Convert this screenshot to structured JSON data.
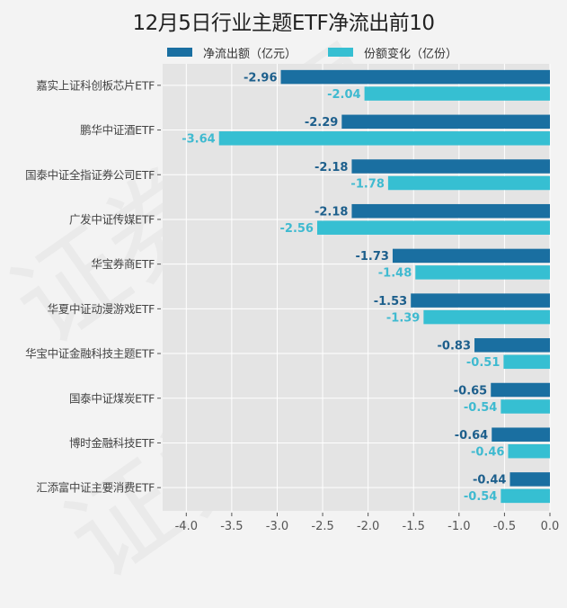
{
  "colors": {
    "net_outflow": "#1a6fa1",
    "share_change": "#36bfd2",
    "plot_bg": "#e4e4e4",
    "grid": "#ffffff",
    "label_dark": "#1d5f8c",
    "label_light": "#3fbad0"
  },
  "chart_data": {
    "type": "bar",
    "orientation": "horizontal",
    "title": "12月5日行业主题ETF净流出前10",
    "xlabel": "",
    "ylabel": "",
    "xlim": [
      -4.26,
      0.0
    ],
    "xticks": [
      -4.0,
      -3.5,
      -3.0,
      -2.5,
      -2.0,
      -1.5,
      -1.0,
      -0.5,
      0.0
    ],
    "xtick_labels": [
      "-4.0",
      "-3.5",
      "-3.0",
      "-2.5",
      "-2.0",
      "-1.5",
      "-1.0",
      "-0.5",
      "0.0"
    ],
    "grid": true,
    "legend_position": "top",
    "categories": [
      "嘉实上证科创板芯片ETF",
      "鹏华中证酒ETF",
      "国泰中证全指证券公司ETF",
      "广发中证传媒ETF",
      "华宝券商ETF",
      "华夏中证动漫游戏ETF",
      "华宝中证金融科技主题ETF",
      "国泰中证煤炭ETF",
      "博时金融科技ETF",
      "汇添富中证主要消费ETF"
    ],
    "series": [
      {
        "name": "净流出额（亿元）",
        "values": [
          -2.96,
          -2.29,
          -2.18,
          -2.18,
          -1.73,
          -1.53,
          -0.83,
          -0.65,
          -0.64,
          -0.44
        ],
        "labels": [
          "-2.96",
          "-2.29",
          "-2.18",
          "-2.18",
          "-1.73",
          "-1.53",
          "-0.83",
          "-0.65",
          "-0.64",
          "-0.44"
        ]
      },
      {
        "name": "份额变化（亿份）",
        "values": [
          -2.04,
          -3.64,
          -1.78,
          -2.56,
          -1.48,
          -1.39,
          -0.51,
          -0.54,
          -0.46,
          -0.54
        ],
        "labels": [
          "-2.04",
          "-3.64",
          "-1.78",
          "-2.56",
          "-1.48",
          "-1.39",
          "-0.51",
          "-0.54",
          "-0.46",
          "-0.54"
        ]
      }
    ]
  },
  "watermark": "证券之星"
}
